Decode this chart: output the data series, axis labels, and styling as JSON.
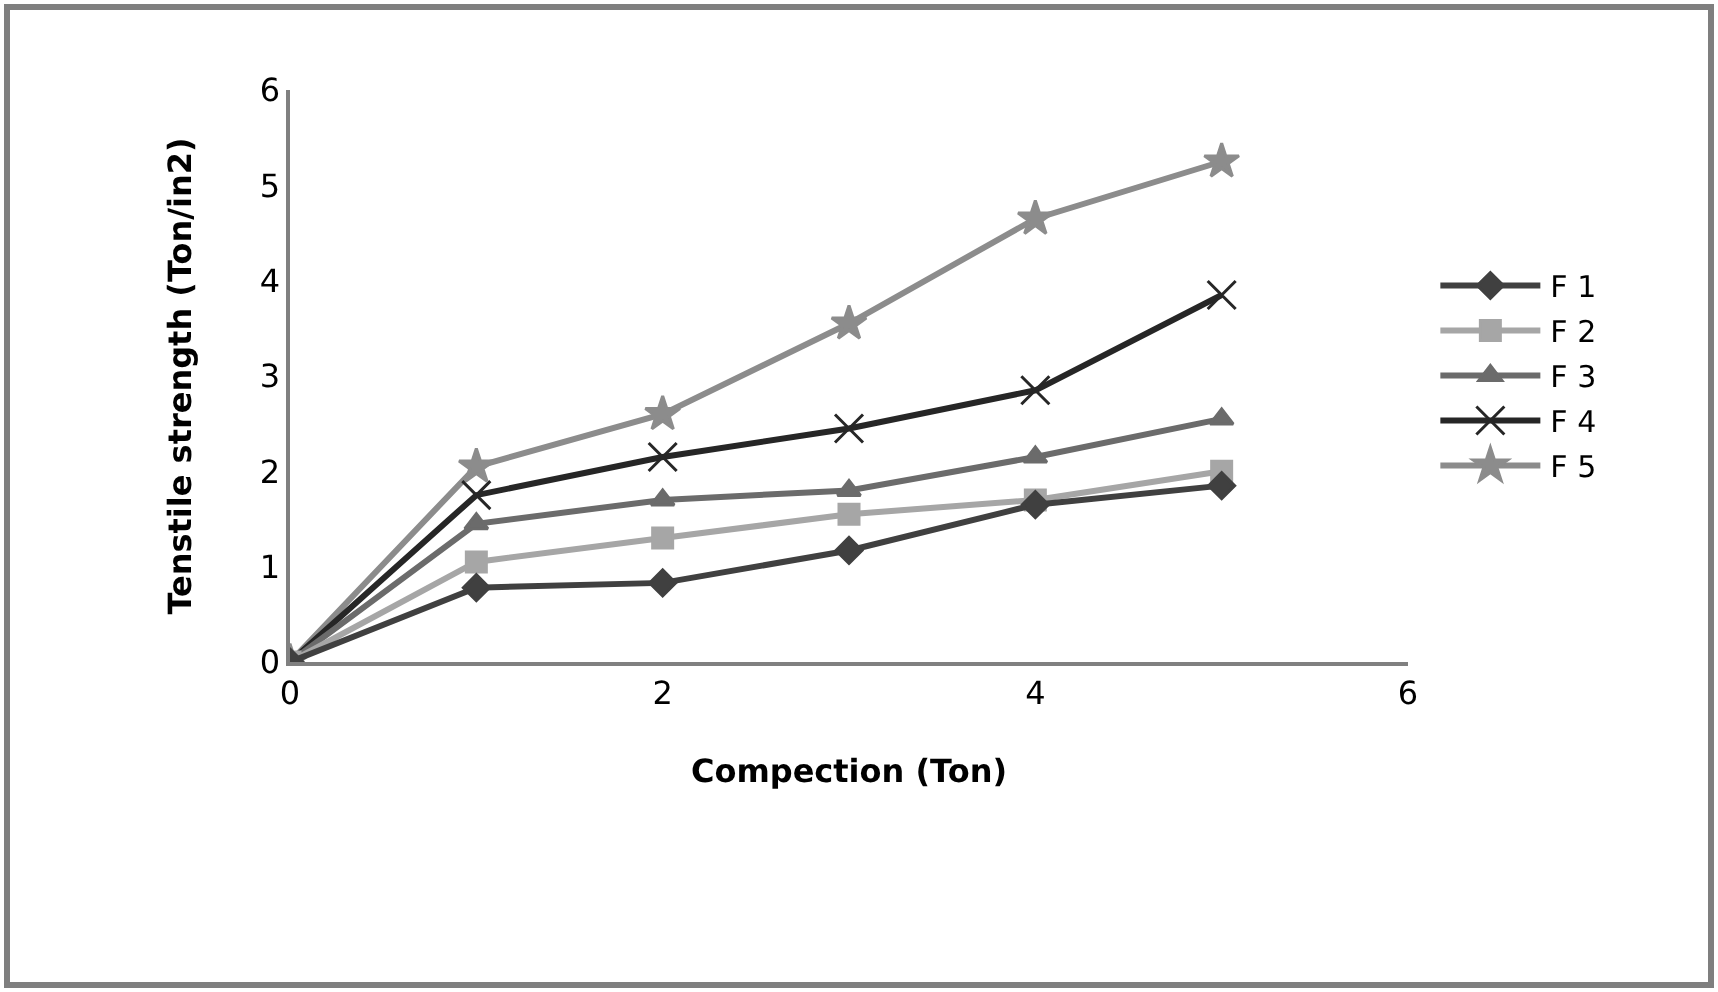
{
  "chart_data": {
    "type": "line",
    "xlabel": "Compection (Ton)",
    "ylabel": "Tenstile strength (Ton/in2)",
    "x": [
      0,
      1,
      2,
      3,
      4,
      5
    ],
    "xlim": [
      0,
      6
    ],
    "xticks": [
      0,
      2,
      4,
      6
    ],
    "ylim": [
      0,
      6
    ],
    "yticks": [
      0,
      1,
      2,
      3,
      4,
      5,
      6
    ],
    "grid": false,
    "legend": "right",
    "line_style": "solid",
    "series": [
      {
        "name": "F 1",
        "color": "#404040",
        "marker": "diamond",
        "values": [
          0,
          0.78,
          0.83,
          1.17,
          1.65,
          1.85
        ]
      },
      {
        "name": "F 2",
        "color": "#a6a6a6",
        "marker": "square",
        "values": [
          0,
          1.05,
          1.3,
          1.55,
          1.7,
          2.0
        ]
      },
      {
        "name": "F 3",
        "color": "#6b6b6b",
        "marker": "triangle",
        "values": [
          0,
          1.45,
          1.7,
          1.8,
          2.15,
          2.55
        ]
      },
      {
        "name": "F 4",
        "color": "#262626",
        "marker": "cross",
        "values": [
          0,
          1.75,
          2.15,
          2.45,
          2.85,
          3.85
        ]
      },
      {
        "name": "F 5",
        "color": "#8c8c8c",
        "marker": "star",
        "values": [
          0,
          2.05,
          2.6,
          3.55,
          4.65,
          5.25
        ]
      }
    ]
  }
}
